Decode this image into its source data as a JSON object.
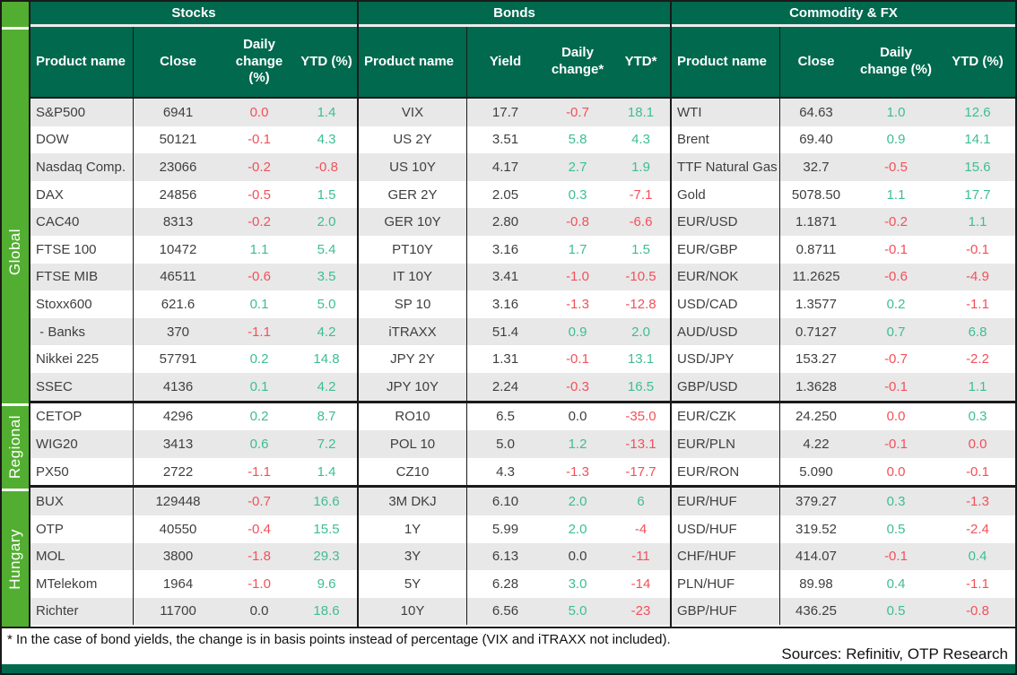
{
  "colors": {
    "dark_green": "#00694E",
    "light_green": "#52AE30",
    "positive": "#3EBE91",
    "negative": "#F3505A",
    "stripe": "#E8E8E8",
    "text": "#3F3F3F"
  },
  "groups": [
    {
      "label": "Global",
      "rows": 11
    },
    {
      "label": "Regional",
      "rows": 3
    },
    {
      "label": "Hungary",
      "rows": 5
    }
  ],
  "footnote": "* In the case of bond yields, the change is in basis points instead of percentage (VIX and iTRAXX not included).",
  "sources": "Sources: Refinitiv, OTP Research",
  "sections": [
    {
      "title": "Stocks",
      "columns": [
        "Product name",
        "Close",
        "Daily change (%)",
        "YTD (%)"
      ],
      "rows": [
        {
          "name": "S&P500",
          "value": "6941",
          "daily": "0.0",
          "daily_color": "neg",
          "ytd": "1.4",
          "ytd_color": "pos"
        },
        {
          "name": "DOW",
          "value": "50121",
          "daily": "-0.1",
          "daily_color": "neg",
          "ytd": "4.3",
          "ytd_color": "pos"
        },
        {
          "name": "Nasdaq Comp.",
          "value": "23066",
          "daily": "-0.2",
          "daily_color": "neg",
          "ytd": "-0.8",
          "ytd_color": "neg"
        },
        {
          "name": "DAX",
          "value": "24856",
          "daily": "-0.5",
          "daily_color": "neg",
          "ytd": "1.5",
          "ytd_color": "pos"
        },
        {
          "name": "CAC40",
          "value": "8313",
          "daily": "-0.2",
          "daily_color": "neg",
          "ytd": "2.0",
          "ytd_color": "pos"
        },
        {
          "name": "FTSE 100",
          "value": "10472",
          "daily": "1.1",
          "daily_color": "pos",
          "ytd": "5.4",
          "ytd_color": "pos"
        },
        {
          "name": "FTSE MIB",
          "value": "46511",
          "daily": "-0.6",
          "daily_color": "neg",
          "ytd": "3.5",
          "ytd_color": "pos"
        },
        {
          "name": "Stoxx600",
          "value": "621.6",
          "daily": "0.1",
          "daily_color": "pos",
          "ytd": "5.0",
          "ytd_color": "pos"
        },
        {
          "name": " - Banks",
          "value": "370",
          "daily": "-1.1",
          "daily_color": "neg",
          "ytd": "4.2",
          "ytd_color": "pos"
        },
        {
          "name": "Nikkei 225",
          "value": "57791",
          "daily": "0.2",
          "daily_color": "pos",
          "ytd": "14.8",
          "ytd_color": "pos"
        },
        {
          "name": "SSEC",
          "value": "4136",
          "daily": "0.1",
          "daily_color": "pos",
          "ytd": "4.2",
          "ytd_color": "pos"
        },
        {
          "name": "CETOP",
          "value": "4296",
          "daily": "0.2",
          "daily_color": "pos",
          "ytd": "8.7",
          "ytd_color": "pos"
        },
        {
          "name": "WIG20",
          "value": "3413",
          "daily": "0.6",
          "daily_color": "pos",
          "ytd": "7.2",
          "ytd_color": "pos"
        },
        {
          "name": "PX50",
          "value": "2722",
          "daily": "-1.1",
          "daily_color": "neg",
          "ytd": "1.4",
          "ytd_color": "pos"
        },
        {
          "name": "BUX",
          "value": "129448",
          "daily": "-0.7",
          "daily_color": "neg",
          "ytd": "16.6",
          "ytd_color": "pos"
        },
        {
          "name": "OTP",
          "value": "40550",
          "daily": "-0.4",
          "daily_color": "neg",
          "ytd": "15.5",
          "ytd_color": "pos"
        },
        {
          "name": "MOL",
          "value": "3800",
          "daily": "-1.8",
          "daily_color": "neg",
          "ytd": "29.3",
          "ytd_color": "pos"
        },
        {
          "name": "MTelekom",
          "value": "1964",
          "daily": "-1.0",
          "daily_color": "neg",
          "ytd": "9.6",
          "ytd_color": "pos"
        },
        {
          "name": "Richter",
          "value": "11700",
          "daily": "0.0",
          "daily_color": "flat",
          "ytd": "18.6",
          "ytd_color": "pos"
        }
      ]
    },
    {
      "title": "Bonds",
      "columns": [
        "Product name",
        "Yield",
        "Daily change*",
        "YTD*"
      ],
      "rows": [
        {
          "name": "VIX",
          "value": "17.7",
          "daily": "-0.7",
          "daily_color": "neg",
          "ytd": "18.1",
          "ytd_color": "pos"
        },
        {
          "name": "US 2Y",
          "value": "3.51",
          "daily": "5.8",
          "daily_color": "pos",
          "ytd": "4.3",
          "ytd_color": "pos"
        },
        {
          "name": "US 10Y",
          "value": "4.17",
          "daily": "2.7",
          "daily_color": "pos",
          "ytd": "1.9",
          "ytd_color": "pos"
        },
        {
          "name": "GER 2Y",
          "value": "2.05",
          "daily": "0.3",
          "daily_color": "pos",
          "ytd": "-7.1",
          "ytd_color": "neg"
        },
        {
          "name": "GER 10Y",
          "value": "2.80",
          "daily": "-0.8",
          "daily_color": "neg",
          "ytd": "-6.6",
          "ytd_color": "neg"
        },
        {
          "name": "PT10Y",
          "value": "3.16",
          "daily": "1.7",
          "daily_color": "pos",
          "ytd": "1.5",
          "ytd_color": "pos"
        },
        {
          "name": "IT 10Y",
          "value": "3.41",
          "daily": "-1.0",
          "daily_color": "neg",
          "ytd": "-10.5",
          "ytd_color": "neg"
        },
        {
          "name": "SP 10",
          "value": "3.16",
          "daily": "-1.3",
          "daily_color": "neg",
          "ytd": "-12.8",
          "ytd_color": "neg"
        },
        {
          "name": "iTRAXX",
          "value": "51.4",
          "daily": "0.9",
          "daily_color": "pos",
          "ytd": "2.0",
          "ytd_color": "pos"
        },
        {
          "name": "JPY 2Y",
          "value": "1.31",
          "daily": "-0.1",
          "daily_color": "neg",
          "ytd": "13.1",
          "ytd_color": "pos"
        },
        {
          "name": "JPY 10Y",
          "value": "2.24",
          "daily": "-0.3",
          "daily_color": "neg",
          "ytd": "16.5",
          "ytd_color": "pos"
        },
        {
          "name": "RO10",
          "value": "6.5",
          "daily": "0.0",
          "daily_color": "flat",
          "ytd": "-35.0",
          "ytd_color": "neg"
        },
        {
          "name": "POL 10",
          "value": "5.0",
          "daily": "1.2",
          "daily_color": "pos",
          "ytd": "-13.1",
          "ytd_color": "neg"
        },
        {
          "name": "CZ10",
          "value": "4.3",
          "daily": "-1.3",
          "daily_color": "neg",
          "ytd": "-17.7",
          "ytd_color": "neg"
        },
        {
          "name": "3M DKJ",
          "value": "6.10",
          "daily": "2.0",
          "daily_color": "pos",
          "ytd": "6",
          "ytd_color": "pos"
        },
        {
          "name": "1Y",
          "value": "5.99",
          "daily": "2.0",
          "daily_color": "pos",
          "ytd": "-4",
          "ytd_color": "neg"
        },
        {
          "name": "3Y",
          "value": "6.13",
          "daily": "0.0",
          "daily_color": "flat",
          "ytd": "-11",
          "ytd_color": "neg"
        },
        {
          "name": "5Y",
          "value": "6.28",
          "daily": "3.0",
          "daily_color": "pos",
          "ytd": "-14",
          "ytd_color": "neg"
        },
        {
          "name": "10Y",
          "value": "6.56",
          "daily": "5.0",
          "daily_color": "pos",
          "ytd": "-23",
          "ytd_color": "neg"
        }
      ]
    },
    {
      "title": "Commodity & FX",
      "columns": [
        "Product name",
        "Close",
        "Daily change (%)",
        "YTD (%)"
      ],
      "rows": [
        {
          "name": "WTI",
          "value": "64.63",
          "daily": "1.0",
          "daily_color": "pos",
          "ytd": "12.6",
          "ytd_color": "pos"
        },
        {
          "name": "Brent",
          "value": "69.40",
          "daily": "0.9",
          "daily_color": "pos",
          "ytd": "14.1",
          "ytd_color": "pos"
        },
        {
          "name": "TTF Natural Gas",
          "value": "32.7",
          "daily": "-0.5",
          "daily_color": "neg",
          "ytd": "15.6",
          "ytd_color": "pos"
        },
        {
          "name": "Gold",
          "value": "5078.50",
          "daily": "1.1",
          "daily_color": "pos",
          "ytd": "17.7",
          "ytd_color": "pos"
        },
        {
          "name": "EUR/USD",
          "value": "1.1871",
          "daily": "-0.2",
          "daily_color": "neg",
          "ytd": "1.1",
          "ytd_color": "pos"
        },
        {
          "name": "EUR/GBP",
          "value": "0.8711",
          "daily": "-0.1",
          "daily_color": "neg",
          "ytd": "-0.1",
          "ytd_color": "neg"
        },
        {
          "name": "EUR/NOK",
          "value": "11.2625",
          "daily": "-0.6",
          "daily_color": "neg",
          "ytd": "-4.9",
          "ytd_color": "neg"
        },
        {
          "name": "USD/CAD",
          "value": "1.3577",
          "daily": "0.2",
          "daily_color": "pos",
          "ytd": "-1.1",
          "ytd_color": "neg"
        },
        {
          "name": "AUD/USD",
          "value": "0.7127",
          "daily": "0.7",
          "daily_color": "pos",
          "ytd": "6.8",
          "ytd_color": "pos"
        },
        {
          "name": "USD/JPY",
          "value": "153.27",
          "daily": "-0.7",
          "daily_color": "neg",
          "ytd": "-2.2",
          "ytd_color": "neg"
        },
        {
          "name": "GBP/USD",
          "value": "1.3628",
          "daily": "-0.1",
          "daily_color": "neg",
          "ytd": "1.1",
          "ytd_color": "pos"
        },
        {
          "name": "EUR/CZK",
          "value": "24.250",
          "daily": "0.0",
          "daily_color": "neg",
          "ytd": "0.3",
          "ytd_color": "pos"
        },
        {
          "name": "EUR/PLN",
          "value": "4.22",
          "daily": "-0.1",
          "daily_color": "neg",
          "ytd": "0.0",
          "ytd_color": "neg"
        },
        {
          "name": "EUR/RON",
          "value": "5.090",
          "daily": "0.0",
          "daily_color": "neg",
          "ytd": "-0.1",
          "ytd_color": "neg"
        },
        {
          "name": "EUR/HUF",
          "value": "379.27",
          "daily": "0.3",
          "daily_color": "pos",
          "ytd": "-1.3",
          "ytd_color": "neg"
        },
        {
          "name": "USD/HUF",
          "value": "319.52",
          "daily": "0.5",
          "daily_color": "pos",
          "ytd": "-2.4",
          "ytd_color": "neg"
        },
        {
          "name": "CHF/HUF",
          "value": "414.07",
          "daily": "-0.1",
          "daily_color": "neg",
          "ytd": "0.4",
          "ytd_color": "pos"
        },
        {
          "name": "PLN/HUF",
          "value": "89.98",
          "daily": "0.4",
          "daily_color": "pos",
          "ytd": "-1.1",
          "ytd_color": "neg"
        },
        {
          "name": "GBP/HUF",
          "value": "436.25",
          "daily": "0.5",
          "daily_color": "pos",
          "ytd": "-0.8",
          "ytd_color": "neg"
        }
      ]
    }
  ]
}
